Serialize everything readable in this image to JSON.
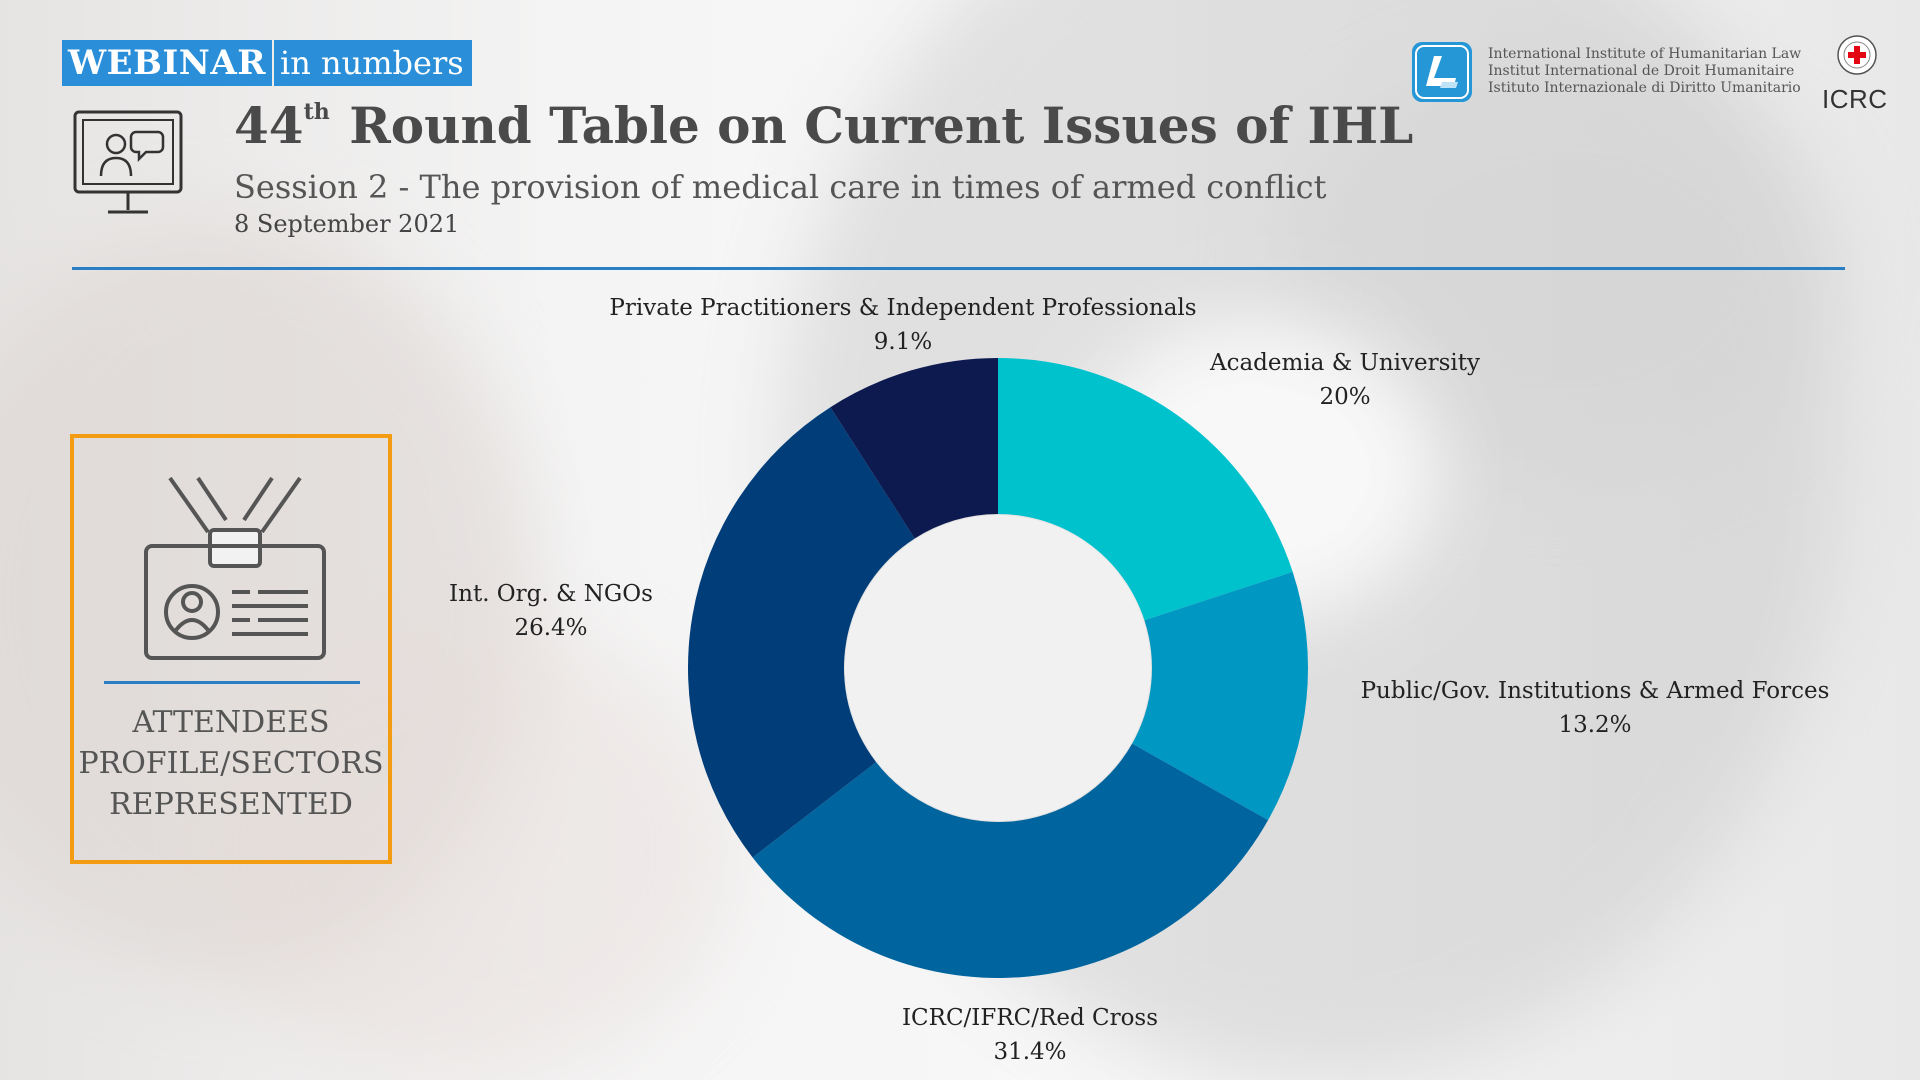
{
  "header": {
    "tag_bold": "WEBINAR",
    "tag_rest": "in numbers",
    "title_number": "44",
    "title_sup": "th",
    "title_rest": "Round Table on Current Issues of IHL",
    "subtitle": "Session 2 - The provision of medical care in times of armed conflict",
    "date": "8 September 2021"
  },
  "logos": {
    "iihl_lines": [
      "International Institute of Humanitarian Law",
      "Institut International de Droit Humanitaire",
      "Istituto Internazionale di Diritto Umanitario"
    ],
    "icrc": "ICRC"
  },
  "side_panel": {
    "lines": [
      "ATTENDEES",
      "PROFILE/SECTORS",
      "REPRESENTED"
    ],
    "icon": "id-badge-icon"
  },
  "colors": {
    "accent_blue": "#2a8fd8",
    "border_orange": "#f39c12"
  },
  "chart_data": {
    "type": "pie",
    "donut": true,
    "title": "",
    "labels_display": "outside",
    "slices": [
      {
        "label": "Academia & University",
        "percent": "20%",
        "value": 20.0,
        "color": "#00c2cd"
      },
      {
        "label": "Public/Gov. Institutions & Armed Forces",
        "percent": "13.2%",
        "value": 13.2,
        "color": "#0097c2"
      },
      {
        "label": "ICRC/IFRC/Red Cross",
        "percent": "31.4%",
        "value": 31.4,
        "color": "#00649e"
      },
      {
        "label": "Int. Org. & NGOs",
        "percent": "26.4%",
        "value": 26.4,
        "color": "#003d79"
      },
      {
        "label": "Private Practitioners & Independent Professionals",
        "percent": "9.1%",
        "value": 9.1,
        "color": "#0d1a50"
      }
    ]
  }
}
